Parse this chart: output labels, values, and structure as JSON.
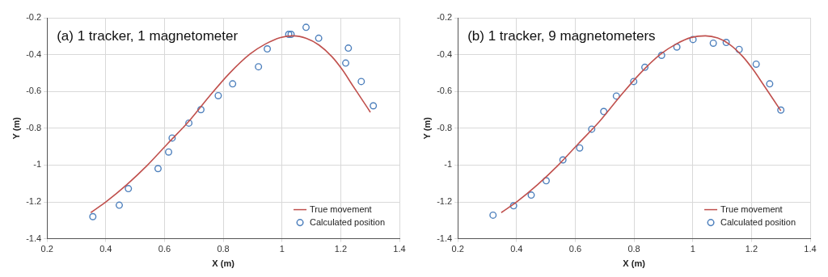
{
  "chart_data": [
    {
      "type": "scatter",
      "title": "(a) 1 tracker, 1 magnetometer",
      "xlabel": "X (m)",
      "ylabel": "Y (m)",
      "xlim": [
        0.2,
        1.4
      ],
      "xticks": [
        0.2,
        0.4,
        0.6,
        0.8,
        1,
        1.2,
        1.4
      ],
      "ylim": [
        -1.4,
        -0.2
      ],
      "yticks": [
        -1.4,
        -1.2,
        -1,
        -0.8,
        -0.6,
        -0.4,
        -0.2
      ],
      "grid": true,
      "legend": "bottom right",
      "series": [
        {
          "name": "True movement",
          "type": "line",
          "marker": "none",
          "line_style": "solid",
          "color": "#c0504d",
          "x": [
            0.349,
            0.401,
            0.471,
            0.541,
            0.611,
            0.681,
            0.751,
            0.821,
            0.891,
            0.943,
            0.995,
            1.039,
            1.083,
            1.126,
            1.17,
            1.205,
            1.24,
            1.275,
            1.301
          ],
          "values": [
            -1.258,
            -1.199,
            -1.107,
            -1.002,
            -0.883,
            -0.766,
            -0.63,
            -0.502,
            -0.397,
            -0.343,
            -0.307,
            -0.298,
            -0.312,
            -0.348,
            -0.411,
            -0.481,
            -0.566,
            -0.65,
            -0.713
          ]
        },
        {
          "name": "Calculated position",
          "type": "scatter",
          "marker": "circle",
          "color": "#4f81bd",
          "x": [
            0.356,
            0.446,
            0.477,
            0.578,
            0.614,
            0.626,
            0.683,
            0.724,
            0.783,
            0.832,
            0.92,
            0.95,
            1.023,
            1.031,
            1.082,
            1.125,
            1.217,
            1.226,
            1.27,
            1.311
          ],
          "values": [
            -1.28,
            -1.218,
            -1.128,
            -1.019,
            -0.929,
            -0.853,
            -0.772,
            -0.699,
            -0.623,
            -0.559,
            -0.466,
            -0.369,
            -0.29,
            -0.29,
            -0.252,
            -0.311,
            -0.446,
            -0.365,
            -0.546,
            -0.678
          ]
        }
      ]
    },
    {
      "type": "scatter",
      "title": "(b) 1 tracker, 9 magnetometers",
      "xlabel": "X (m)",
      "ylabel": "Y (m)",
      "xlim": [
        0.2,
        1.4
      ],
      "xticks": [
        0.2,
        0.4,
        0.6,
        0.8,
        1,
        1.2,
        1.4
      ],
      "ylim": [
        -1.4,
        -0.2
      ],
      "yticks": [
        -1.4,
        -1.2,
        -1,
        -0.8,
        -0.6,
        -0.4,
        -0.2
      ],
      "grid": true,
      "legend": "bottom right",
      "series": [
        {
          "name": "True movement",
          "type": "line",
          "marker": "none",
          "line_style": "solid",
          "color": "#c0504d",
          "x": [
            0.348,
            0.401,
            0.471,
            0.541,
            0.611,
            0.681,
            0.751,
            0.821,
            0.891,
            0.943,
            0.995,
            1.043,
            1.085,
            1.126,
            1.17,
            1.205,
            1.24,
            1.275,
            1.3
          ],
          "values": [
            -1.258,
            -1.199,
            -1.107,
            -1.002,
            -0.883,
            -0.766,
            -0.63,
            -0.502,
            -0.397,
            -0.343,
            -0.307,
            -0.298,
            -0.31,
            -0.345,
            -0.41,
            -0.48,
            -0.562,
            -0.645,
            -0.705
          ]
        },
        {
          "name": "Calculated position",
          "type": "scatter",
          "marker": "circle",
          "color": "#4f81bd",
          "x": [
            0.32,
            0.39,
            0.45,
            0.501,
            0.558,
            0.615,
            0.656,
            0.697,
            0.74,
            0.799,
            0.837,
            0.894,
            0.946,
            1.001,
            1.07,
            1.114,
            1.158,
            1.216,
            1.262,
            1.3
          ],
          "values": [
            -1.272,
            -1.221,
            -1.163,
            -1.085,
            -0.972,
            -0.907,
            -0.805,
            -0.709,
            -0.625,
            -0.546,
            -0.469,
            -0.404,
            -0.359,
            -0.318,
            -0.338,
            -0.334,
            -0.372,
            -0.452,
            -0.559,
            -0.701
          ]
        }
      ]
    }
  ]
}
